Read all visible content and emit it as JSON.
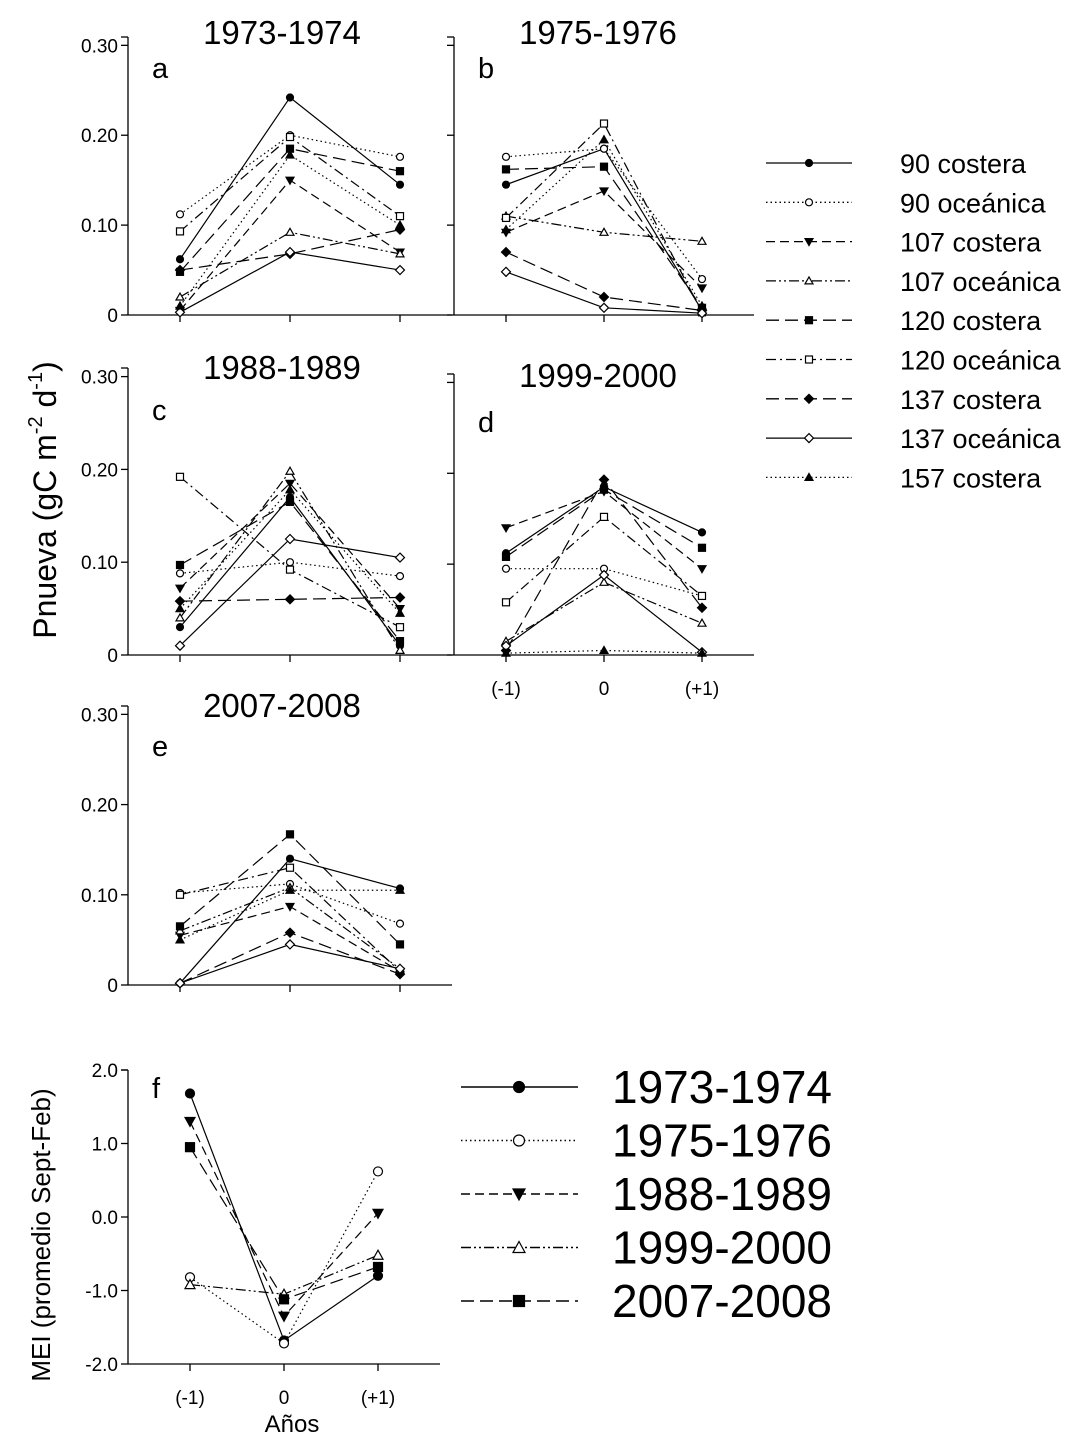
{
  "figure": {
    "ylabel_prod": "Pnueva (gC m-2 d-1)",
    "ylabel_prod_parts": {
      "main": "Pnueva (gC m",
      "sup1": "-2",
      "mid": " d",
      "sup2": "-1",
      "end": ")"
    },
    "ylabel_mei": "MEI (promedio Sept-Feb)",
    "xlabel": "Años"
  },
  "legend_stations": [
    {
      "label": "90 costera",
      "line": "solid",
      "marker": "circle-filled"
    },
    {
      "label": "90 oceánica",
      "line": "dotted",
      "marker": "circle-open"
    },
    {
      "label": "107 costera",
      "line": "dashed",
      "marker": "triangle-down-filled"
    },
    {
      "label": "107 oceánica",
      "line": "dashdotdot",
      "marker": "triangle-up-open"
    },
    {
      "label": "120 costera",
      "line": "longdash",
      "marker": "square-filled"
    },
    {
      "label": "120 oceánica",
      "line": "dashdot",
      "marker": "square-open"
    },
    {
      "label": "137 costera",
      "line": "longdash",
      "marker": "diamond-filled"
    },
    {
      "label": "137 oceánica",
      "line": "solid",
      "marker": "diamond-open"
    },
    {
      "label": "157 costera",
      "line": "dotted",
      "marker": "triangle-up-filled"
    }
  ],
  "legend_years": [
    {
      "label": "1973-1974",
      "line": "solid",
      "marker": "circle-filled"
    },
    {
      "label": "1975-1976",
      "line": "dotted",
      "marker": "circle-open"
    },
    {
      "label": "1988-1989",
      "line": "dashed",
      "marker": "triangle-down-filled"
    },
    {
      "label": "1999-2000",
      "line": "dashdotdot",
      "marker": "triangle-up-open"
    },
    {
      "label": "2007-2008",
      "line": "longdash",
      "marker": "square-filled"
    }
  ],
  "chart_data": [
    {
      "type": "line",
      "panel": "a",
      "title": "1973-1974",
      "categories": [
        "(-1)",
        "0",
        "(+1)"
      ],
      "ylim": [
        0,
        0.3
      ],
      "yticks": [
        "0",
        "0.10",
        "0.20",
        "0.30"
      ],
      "show_xticklabels": false,
      "series": [
        {
          "name": "90 costera",
          "values": [
            0.062,
            0.242,
            0.145
          ]
        },
        {
          "name": "90 oceánica",
          "values": [
            0.112,
            0.2,
            0.176
          ]
        },
        {
          "name": "107 costera",
          "values": [
            0.005,
            0.15,
            0.07
          ]
        },
        {
          "name": "107 oceánica",
          "values": [
            0.02,
            0.092,
            0.068
          ]
        },
        {
          "name": "120 costera",
          "values": [
            0.048,
            0.185,
            0.16
          ]
        },
        {
          "name": "120 oceánica",
          "values": [
            0.093,
            0.198,
            0.11
          ]
        },
        {
          "name": "137 costera",
          "values": [
            0.05,
            0.068,
            0.095
          ]
        },
        {
          "name": "137 oceánica",
          "values": [
            0.003,
            0.07,
            0.05
          ]
        },
        {
          "name": "157 costera",
          "values": [
            0.01,
            0.178,
            0.1
          ]
        }
      ]
    },
    {
      "type": "line",
      "panel": "b",
      "title": "1975-1976",
      "categories": [
        "(-1)",
        "0",
        "(+1)"
      ],
      "ylim": [
        0,
        0.3
      ],
      "yticks": [],
      "show_xticklabels": false,
      "series": [
        {
          "name": "90 costera",
          "values": [
            0.145,
            0.185,
            0.005
          ]
        },
        {
          "name": "90 oceánica",
          "values": [
            0.176,
            0.185,
            0.04
          ]
        },
        {
          "name": "107 costera",
          "values": [
            0.092,
            0.138,
            0.03
          ]
        },
        {
          "name": "107 oceánica",
          "values": [
            0.11,
            0.092,
            0.082
          ]
        },
        {
          "name": "120 costera",
          "values": [
            0.162,
            0.165,
            0.008
          ]
        },
        {
          "name": "120 oceánica",
          "values": [
            0.108,
            0.213,
            0.003
          ]
        },
        {
          "name": "137 costera",
          "values": [
            0.07,
            0.02,
            0.005
          ]
        },
        {
          "name": "137 oceánica",
          "values": [
            0.048,
            0.008,
            0.002
          ]
        },
        {
          "name": "157 costera",
          "values": [
            0.095,
            0.195,
            0.01
          ]
        }
      ]
    },
    {
      "type": "line",
      "panel": "c",
      "title": "1988-1989",
      "categories": [
        "(-1)",
        "0",
        "(+1)"
      ],
      "ylim": [
        0,
        0.3
      ],
      "yticks": [
        "0",
        "0.10",
        "0.20",
        "0.30"
      ],
      "show_xticklabels": false,
      "series": [
        {
          "name": "90 costera",
          "values": [
            0.03,
            0.17,
            0.01
          ]
        },
        {
          "name": "90 oceánica",
          "values": [
            0.088,
            0.1,
            0.085
          ]
        },
        {
          "name": "107 costera",
          "values": [
            0.072,
            0.185,
            0.05
          ]
        },
        {
          "name": "107 oceánica",
          "values": [
            0.04,
            0.198,
            0.005
          ]
        },
        {
          "name": "120 costera",
          "values": [
            0.097,
            0.165,
            0.015
          ]
        },
        {
          "name": "120 oceánica",
          "values": [
            0.192,
            0.092,
            0.03
          ]
        },
        {
          "name": "137 costera",
          "values": [
            0.058,
            0.06,
            0.062
          ]
        },
        {
          "name": "137 oceánica",
          "values": [
            0.01,
            0.125,
            0.105
          ]
        },
        {
          "name": "157 costera",
          "values": [
            0.05,
            0.178,
            0.045
          ]
        }
      ]
    },
    {
      "type": "line",
      "panel": "d",
      "title": "1999-2000",
      "categories": [
        "(-1)",
        "0",
        "(+1)"
      ],
      "ylim": [
        0,
        0.3
      ],
      "yticks": [],
      "show_xticklabels": true,
      "series": [
        {
          "name": "90 costera",
          "values": [
            0.112,
            0.185,
            0.135
          ]
        },
        {
          "name": "90 oceánica",
          "values": [
            0.095,
            0.095,
            0.065
          ]
        },
        {
          "name": "107 costera",
          "values": [
            0.14,
            0.18,
            0.095
          ]
        },
        {
          "name": "107 oceánica",
          "values": [
            0.015,
            0.08,
            0.035
          ]
        },
        {
          "name": "120 costera",
          "values": [
            0.108,
            0.182,
            0.118
          ]
        },
        {
          "name": "120 oceánica",
          "values": [
            0.058,
            0.152,
            0.065
          ]
        },
        {
          "name": "137 costera",
          "values": [
            0.005,
            0.193,
            0.052
          ]
        },
        {
          "name": "137 oceánica",
          "values": [
            0.01,
            0.088,
            0.003
          ]
        },
        {
          "name": "157 costera",
          "values": [
            0.002,
            0.005,
            0.002
          ]
        }
      ]
    },
    {
      "type": "line",
      "panel": "e",
      "title": "2007-2008",
      "categories": [
        "(-1)",
        "0",
        "(+1)"
      ],
      "ylim": [
        0,
        0.3
      ],
      "yticks": [
        "0",
        "0.10",
        "0.20",
        "0.30"
      ],
      "show_xticklabels": false,
      "series": [
        {
          "name": "90 costera",
          "values": [
            0.002,
            0.14,
            0.107
          ]
        },
        {
          "name": "90 oceánica",
          "values": [
            0.102,
            0.112,
            0.068
          ]
        },
        {
          "name": "107 costera",
          "values": [
            0.055,
            0.087,
            0.015
          ]
        },
        {
          "name": "107 oceánica",
          "values": [
            0.06,
            0.108,
            0.018
          ]
        },
        {
          "name": "120 costera",
          "values": [
            0.065,
            0.167,
            0.045
          ]
        },
        {
          "name": "120 oceánica",
          "values": [
            0.1,
            0.13,
            0.015
          ]
        },
        {
          "name": "137 costera",
          "values": [
            0.002,
            0.058,
            0.012
          ]
        },
        {
          "name": "137 oceánica",
          "values": [
            0.002,
            0.045,
            0.018
          ]
        },
        {
          "name": "157 costera",
          "values": [
            0.05,
            0.105,
            0.105
          ]
        }
      ]
    },
    {
      "type": "line",
      "panel": "f",
      "title": "",
      "categories": [
        "(-1)",
        "0",
        "(+1)"
      ],
      "ylim": [
        -2.0,
        2.0
      ],
      "yticks": [
        "-2.0",
        "-1.0",
        "0.0",
        "1.0",
        "2.0"
      ],
      "show_xticklabels": true,
      "series": [
        {
          "name": "1973-1974",
          "values": [
            1.68,
            -1.68,
            -0.8
          ]
        },
        {
          "name": "1975-1976",
          "values": [
            -0.82,
            -1.72,
            0.62
          ]
        },
        {
          "name": "1988-1989",
          "values": [
            1.3,
            -1.35,
            0.05
          ]
        },
        {
          "name": "1999-2000",
          "values": [
            -0.92,
            -1.05,
            -0.52
          ]
        },
        {
          "name": "2007-2008",
          "values": [
            0.95,
            -1.12,
            -0.68
          ]
        }
      ]
    }
  ]
}
